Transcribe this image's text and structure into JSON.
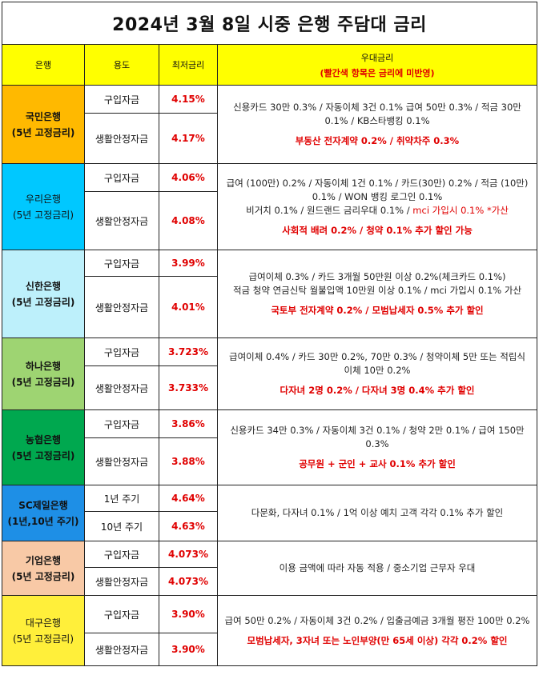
{
  "title": "2024년 3월 8일 시중 은행 주담대 금리",
  "headers": {
    "bank": "은행",
    "use": "용도",
    "rate": "최저금리",
    "perk": "우대금리",
    "perk_note": "(빨간색 항목은 금리에 미반영)"
  },
  "colors": {
    "header_bg": "#ffff00",
    "rate_text": "#e00000",
    "kb": "#ffb900",
    "woori": "#00c8ff",
    "shinhan": "#bdf0fb",
    "hana": "#9ed472",
    "nh": "#00a84f",
    "sc": "#1e8fe6",
    "ibk": "#f8c9a6",
    "dgb": "#ffef3a"
  },
  "banks": [
    {
      "name": "국민은행",
      "sub": "(5년 고정금리)",
      "rows": [
        {
          "use": "구입자금",
          "rate": "4.15%"
        },
        {
          "use": "생활안정자금",
          "rate": "4.17%"
        }
      ],
      "perk_lines": [
        "신용카드 30만 0.3% / 자동이체 3건 0.1% 급여 50만 0.3% / 적금 30만 0.1% / KB스타뱅킹 0.1%"
      ],
      "perk_red": "부동산 전자계약 0.2% / 취약차주 0.3%"
    },
    {
      "name": "우리은행",
      "sub": "(5년 고정금리)",
      "rows": [
        {
          "use": "구입자금",
          "rate": "4.06%"
        },
        {
          "use": "생활안정자금",
          "rate": "4.08%"
        }
      ],
      "perk_lines": [
        "급여 (100만) 0.2% / 자동이체 1건 0.1% / 카드(30만) 0.2% / 적금 (10만) 0.1% / WON 뱅킹 로그인 0.1%"
      ],
      "perk_mixed_black": "비거치 0.1% / 원드랜드 금리우대 0.1% / ",
      "perk_mixed_red": "mci 가입시 0.1% *가산",
      "perk_red": "사회적 배려 0.2% / 청약 0.1% 추가 할인 가능"
    },
    {
      "name": "신한은행",
      "sub": "(5년 고정금리)",
      "rows": [
        {
          "use": "구입자금",
          "rate": "3.99%"
        },
        {
          "use": "생활안정자금",
          "rate": "4.01%"
        }
      ],
      "perk_lines": [
        "급여이체 0.3% / 카드 3개월 50만원 이상 0.2%(체크카드 0.1%)",
        "적금 청약 연금신탁 월불입액 10만원 이상 0.1% / mci 가입시 0.1% 가산"
      ],
      "perk_red": "국토부 전자계약 0.2% / 모범납세자 0.5% 추가 할인"
    },
    {
      "name": "하나은행",
      "sub": "(5년 고정금리)",
      "rows": [
        {
          "use": "구입자금",
          "rate": "3.723%"
        },
        {
          "use": "생활안정자금",
          "rate": "3.733%"
        }
      ],
      "perk_lines": [
        "급여이체 0.4% / 카드 30만 0.2%, 70만 0.3% / 청약이체 5만 또는 적립식 이체 10만 0.2%"
      ],
      "perk_red": "다자녀 2명 0.2% / 다자녀 3명 0.4% 추가 할인"
    },
    {
      "name": "농협은행",
      "sub": "(5년 고정금리)",
      "rows": [
        {
          "use": "구입자금",
          "rate": "3.86%"
        },
        {
          "use": "생활안정자금",
          "rate": "3.88%"
        }
      ],
      "perk_lines": [
        "신용카드 34만 0.3% / 자동이체 3건 0.1% / 청약 2만 0.1% / 급여 150만 0.3%"
      ],
      "perk_red": "공무원 + 군인 + 교사 0.1% 추가 할인"
    },
    {
      "name": "SC제일은행",
      "sub": "(1년,10년 주기)",
      "rows": [
        {
          "use": "1년 주기",
          "rate": "4.64%"
        },
        {
          "use": "10년 주기",
          "rate": "4.63%"
        }
      ],
      "perk_lines": [
        "다문화, 다자녀 0.1% / 1억 이상 예치 고객 각각 0.1% 추가 할인"
      ],
      "perk_red": ""
    },
    {
      "name": "기업은행",
      "sub": "(5년 고정금리)",
      "rows": [
        {
          "use": "구입자금",
          "rate": "4.073%"
        },
        {
          "use": "생활안정자금",
          "rate": "4.073%"
        }
      ],
      "perk_lines": [
        "이용 금액에 따라 자동 적용 / 중소기업 근무자 우대"
      ],
      "perk_red": ""
    },
    {
      "name": "대구은행",
      "sub": "(5년 고정금리)",
      "rows": [
        {
          "use": "구입자금",
          "rate": "3.90%"
        },
        {
          "use": "생활안정자금",
          "rate": "3.90%"
        }
      ],
      "perk_lines": [
        "급여 50만 0.2% / 자동이체 3건 0.2% / 입출금예금 3개월 평잔 100만 0.2%"
      ],
      "perk_red": "모범납세자, 3자녀 또는 노인부양(만 65세 이상) 각각 0.2% 할인"
    }
  ]
}
